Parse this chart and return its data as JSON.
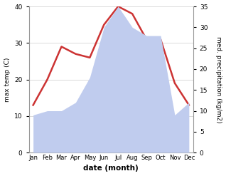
{
  "months": [
    "Jan",
    "Feb",
    "Mar",
    "Apr",
    "May",
    "Jun",
    "Jul",
    "Aug",
    "Sep",
    "Oct",
    "Nov",
    "Dec"
  ],
  "temperature": [
    13,
    20,
    29,
    27,
    26,
    35,
    40,
    38,
    31,
    31,
    19,
    13
  ],
  "precipitation": [
    9,
    10,
    10,
    12,
    18,
    30,
    35,
    30,
    28,
    28,
    9,
    12
  ],
  "temp_color": "#cc3333",
  "precip_color": "#c0ccee",
  "ylabel_left": "max temp (C)",
  "ylabel_right": "med. precipitation (kg/m2)",
  "xlabel": "date (month)",
  "ylim_left": [
    0,
    40
  ],
  "ylim_right": [
    0,
    35
  ],
  "yticks_left": [
    0,
    10,
    20,
    30,
    40
  ],
  "yticks_right": [
    0,
    5,
    10,
    15,
    20,
    25,
    30,
    35
  ]
}
